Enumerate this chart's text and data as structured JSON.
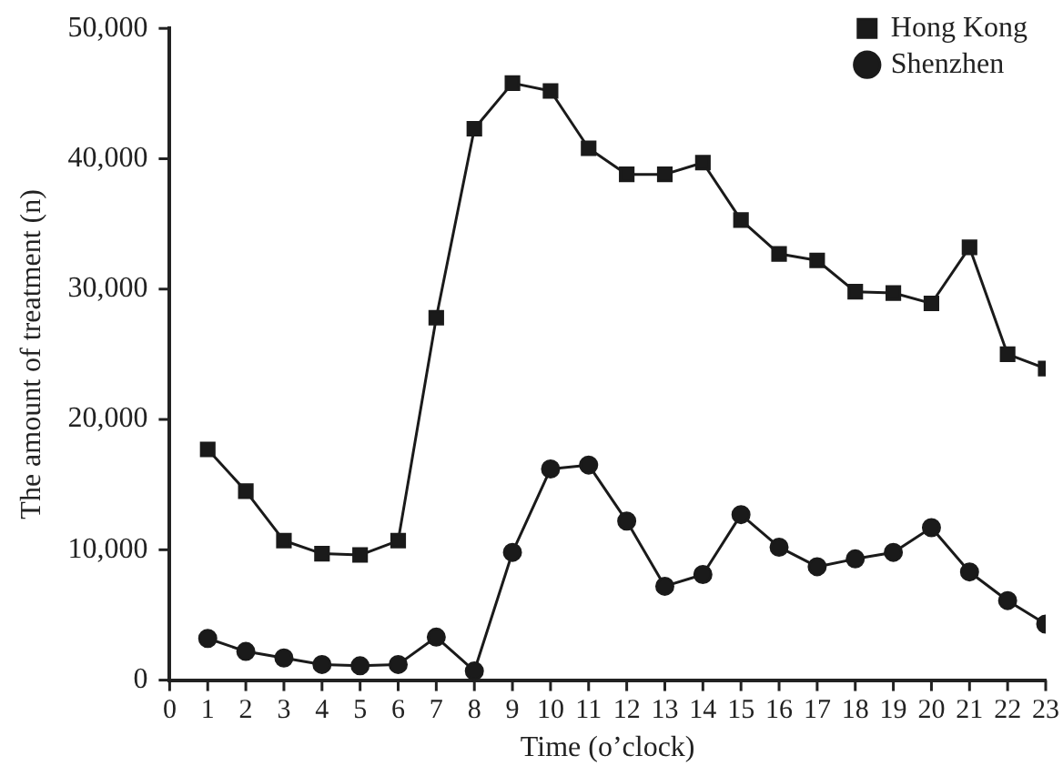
{
  "chart_data": {
    "type": "line",
    "xlabel": "Time (o’clock)",
    "ylabel": "The amount of treatment (n)",
    "x": [
      1,
      2,
      3,
      4,
      5,
      6,
      7,
      8,
      9,
      10,
      11,
      12,
      13,
      14,
      15,
      16,
      17,
      18,
      19,
      20,
      21,
      22,
      23
    ],
    "xlim": [
      0,
      23
    ],
    "xticks": [
      0,
      1,
      2,
      3,
      4,
      5,
      6,
      7,
      8,
      9,
      10,
      11,
      12,
      13,
      14,
      15,
      16,
      17,
      18,
      19,
      20,
      21,
      22,
      23
    ],
    "ylim": [
      0,
      50000
    ],
    "yticks": [
      0,
      {
        "value": 10000,
        "label": "10,000"
      },
      {
        "value": 20000,
        "label": "20,000"
      },
      {
        "value": 30000,
        "label": "30,000"
      },
      {
        "value": 40000,
        "label": "40,000"
      },
      {
        "value": 50000,
        "label": "50,000"
      }
    ],
    "grid": false,
    "legend": "top right",
    "line_style": "solid",
    "series": [
      {
        "name": "Hong Kong",
        "color": "#1a1a1a",
        "marker": "square",
        "values": [
          17700,
          14500,
          10700,
          9700,
          9600,
          10700,
          27800,
          42300,
          45800,
          45200,
          40800,
          38800,
          38800,
          39700,
          35300,
          32700,
          32200,
          29800,
          29700,
          28900,
          33200,
          25000,
          23900
        ]
      },
      {
        "name": "Shenzhen",
        "color": "#1a1a1a",
        "marker": "circle",
        "values": [
          3200,
          2200,
          1700,
          1200,
          1100,
          1200,
          3300,
          700,
          9800,
          16200,
          16500,
          12200,
          7200,
          8100,
          12700,
          10200,
          8700,
          9300,
          9800,
          11700,
          8300,
          6100,
          4300
        ]
      }
    ]
  }
}
